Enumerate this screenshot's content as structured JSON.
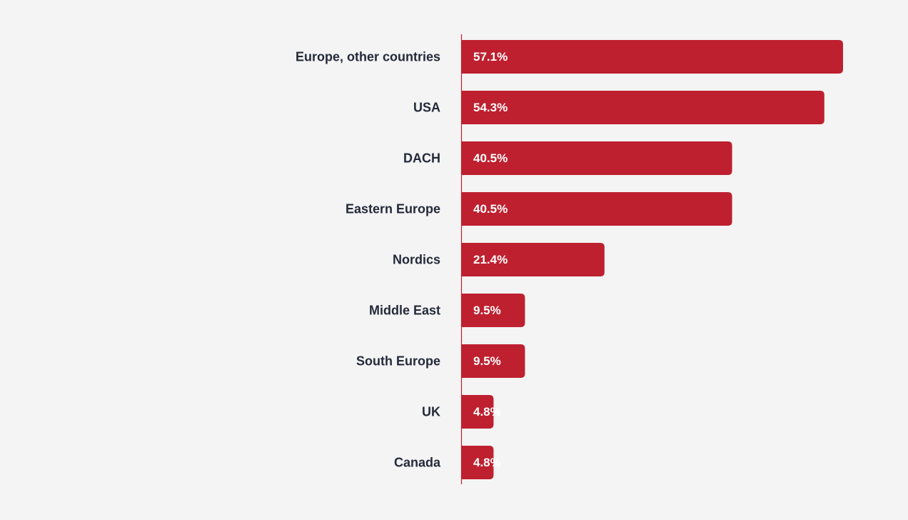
{
  "chart_data": {
    "type": "bar",
    "orientation": "horizontal",
    "categories": [
      "Europe, other countries",
      "USA",
      "DACH",
      "Eastern Europe",
      "Nordics",
      "Middle East",
      "South Europe",
      "UK",
      "Canada"
    ],
    "values": [
      57.1,
      54.3,
      40.5,
      40.5,
      21.4,
      9.5,
      9.5,
      4.8,
      4.8
    ],
    "value_labels": [
      "57.1%",
      "54.3%",
      "40.5%",
      "40.5%",
      "21.4%",
      "9.5%",
      "9.5%",
      "4.8%",
      "4.8%"
    ],
    "bar_color": "#be202f",
    "label_color": "#242a3a",
    "value_label_color": "#ffffff",
    "axis_color": "#be202f",
    "background": "#f4f4f4",
    "grid": false,
    "legend": "none"
  }
}
